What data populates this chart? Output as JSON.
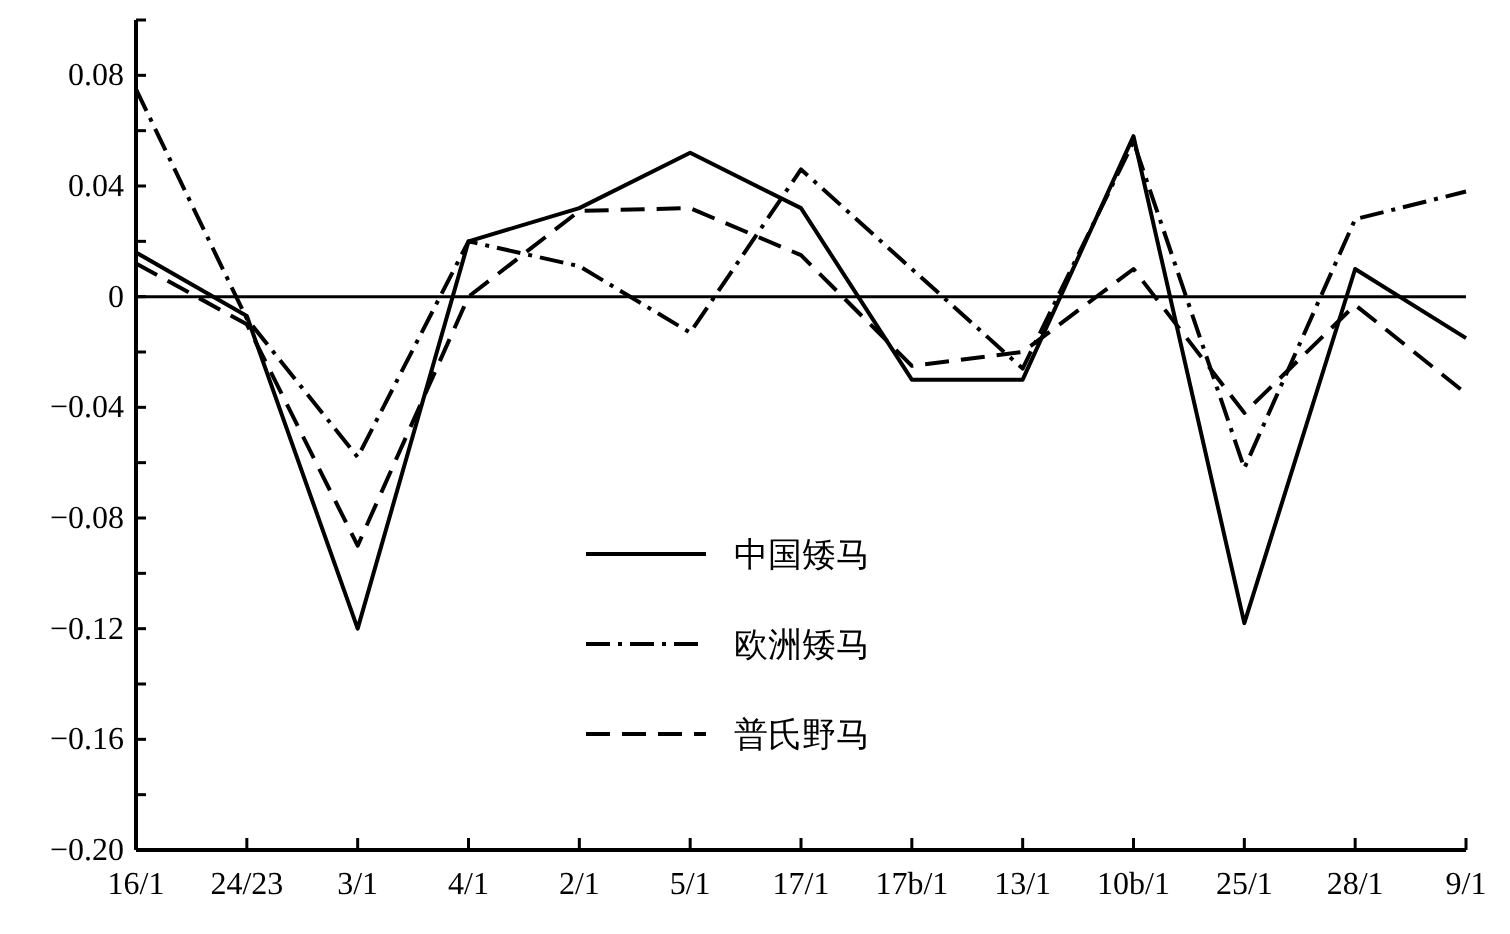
{
  "chart_data": {
    "type": "line",
    "categories": [
      "16/1",
      "24/23",
      "3/1",
      "4/1",
      "2/1",
      "5/1",
      "17/1",
      "17b/1",
      "13/1",
      "10b/1",
      "25/1",
      "28/1",
      "9/1"
    ],
    "series": [
      {
        "name": "中国矮马",
        "color": "#000000",
        "line_style": "solid",
        "values": [
          0.016,
          -0.007,
          -0.12,
          0.02,
          0.032,
          0.052,
          0.032,
          -0.03,
          -0.03,
          0.058,
          -0.118,
          0.01,
          -0.015
        ]
      },
      {
        "name": "欧洲矮马",
        "color": "#000000",
        "line_style": "dashdot",
        "values": [
          0.075,
          -0.008,
          -0.058,
          0.02,
          0.011,
          -0.013,
          0.046,
          0.01,
          -0.026,
          0.056,
          -0.062,
          0.028,
          0.038
        ]
      },
      {
        "name": "普氏野马",
        "color": "#000000",
        "line_style": "dashed",
        "values": [
          0.012,
          -0.01,
          -0.09,
          0,
          0.031,
          0.032,
          0.015,
          -0.025,
          -0.02,
          0.01,
          -0.042,
          -0.003,
          -0.035
        ]
      }
    ],
    "ylim": [
      -0.2,
      0.1
    ],
    "yticks": [
      {
        "value": 0.1,
        "label": null
      },
      0.08,
      {
        "value": 0.06,
        "label": null
      },
      0.04,
      {
        "value": 0.02,
        "label": null
      },
      0,
      {
        "value": -0.02,
        "label": null
      },
      {
        "value": -0.04,
        "label": "−0.04"
      },
      {
        "value": -0.06,
        "label": null
      },
      {
        "value": -0.08,
        "label": "−0.08"
      },
      {
        "value": -0.1,
        "label": null
      },
      {
        "value": -0.12,
        "label": "−0.12"
      },
      {
        "value": -0.14,
        "label": null
      },
      {
        "value": -0.16,
        "label": "−0.16"
      },
      {
        "value": -0.18,
        "label": null
      },
      {
        "value": -0.2,
        "label": "−0.20"
      }
    ],
    "ref_lines": [
      {
        "axis": "y",
        "value": 0,
        "color": "#000000"
      }
    ],
    "grid": false,
    "marker": "none",
    "legend": "bottom"
  }
}
